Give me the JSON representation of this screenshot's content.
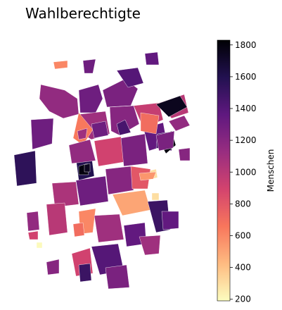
{
  "title": "Wahlberechtigte",
  "colorbar": {
    "label": "Menschen",
    "min": 190,
    "max": 1830,
    "ticks": [
      200,
      400,
      600,
      800,
      1000,
      1200,
      1400,
      1600,
      1800
    ],
    "colormap": "magma_r",
    "stops": [
      "#fcfdbf",
      "#febb81",
      "#f8765c",
      "#d3436e",
      "#982d80",
      "#5f187f",
      "#221150",
      "#000004"
    ]
  },
  "map_data": {
    "type": "choropleth",
    "note_value": "districts colored by number of eligible voters",
    "districts": [
      {
        "value": 1150
      },
      {
        "value": 1300
      },
      {
        "value": 1250
      },
      {
        "value": 1400
      },
      {
        "value": 1100
      },
      {
        "value": 1200
      },
      {
        "value": 950
      },
      {
        "value": 1350
      },
      {
        "value": 1000
      },
      {
        "value": 700
      },
      {
        "value": 1450
      },
      {
        "value": 1800
      },
      {
        "value": 1600
      },
      {
        "value": 650
      },
      {
        "value": 1150
      },
      {
        "value": 900
      },
      {
        "value": 1250
      },
      {
        "value": 500
      },
      {
        "value": 300
      },
      {
        "value": 1050
      },
      {
        "value": 1300
      },
      {
        "value": 1200
      },
      {
        "value": 800
      },
      {
        "value": 600
      },
      {
        "value": 1100
      },
      {
        "value": 1500
      },
      {
        "value": 1350
      },
      {
        "value": 200
      },
      {
        "value": 1400
      },
      {
        "value": 1250
      },
      {
        "value": 1000
      },
      {
        "value": 1150
      },
      {
        "value": 1550
      },
      {
        "value": 1300
      },
      {
        "value": 900
      },
      {
        "value": 1200
      }
    ]
  }
}
